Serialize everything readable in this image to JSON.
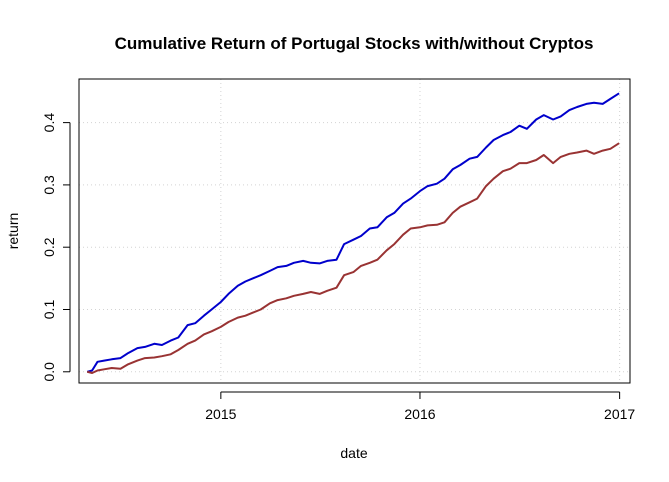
{
  "chart_data": {
    "type": "line",
    "title": "Cumulative Return of Portugal Stocks with/without Cryptos",
    "xlabel": "date",
    "ylabel": "return",
    "x_ticks": [
      "2015",
      "2016",
      "2017"
    ],
    "x_tick_values": [
      "2015-01-01",
      "2016-01-01",
      "2017-01-01"
    ],
    "y_ticks": [
      "0.0",
      "0.1",
      "0.2",
      "0.3",
      "0.4"
    ],
    "y_tick_values": [
      0.0,
      0.1,
      0.2,
      0.3,
      0.4
    ],
    "xlim": [
      "2014-04-16",
      "2017-01-20"
    ],
    "ylim": [
      -0.018,
      0.47
    ],
    "grid": true,
    "series": [
      {
        "color": "#0000cc",
        "x": [
          "2014-05-01",
          "2014-05-10",
          "2014-05-20",
          "2014-06-01",
          "2014-06-15",
          "2014-07-01",
          "2014-07-15",
          "2014-08-01",
          "2014-08-15",
          "2014-09-01",
          "2014-09-15",
          "2014-10-01",
          "2014-10-15",
          "2014-11-01",
          "2014-11-15",
          "2014-12-01",
          "2014-12-15",
          "2015-01-01",
          "2015-01-15",
          "2015-02-01",
          "2015-02-15",
          "2015-03-01",
          "2015-03-15",
          "2015-04-01",
          "2015-04-15",
          "2015-05-01",
          "2015-05-15",
          "2015-06-01",
          "2015-06-15",
          "2015-07-01",
          "2015-07-15",
          "2015-08-01",
          "2015-08-15",
          "2015-09-01",
          "2015-09-15",
          "2015-10-01",
          "2015-10-15",
          "2015-11-01",
          "2015-11-15",
          "2015-12-01",
          "2015-12-15",
          "2016-01-01",
          "2016-01-15",
          "2016-02-01",
          "2016-02-15",
          "2016-03-01",
          "2016-03-15",
          "2016-04-01",
          "2016-04-15",
          "2016-05-01",
          "2016-05-15",
          "2016-06-01",
          "2016-06-15",
          "2016-07-01",
          "2016-07-15",
          "2016-08-01",
          "2016-08-15",
          "2016-09-01",
          "2016-09-15",
          "2016-10-01",
          "2016-10-15",
          "2016-11-01",
          "2016-11-15",
          "2016-12-01",
          "2016-12-15",
          "2016-12-31"
        ],
        "values": [
          0.0,
          0.002,
          0.016,
          0.018,
          0.02,
          0.022,
          0.03,
          0.038,
          0.04,
          0.045,
          0.043,
          0.05,
          0.055,
          0.075,
          0.078,
          0.09,
          0.1,
          0.112,
          0.125,
          0.138,
          0.145,
          0.15,
          0.155,
          0.162,
          0.168,
          0.17,
          0.175,
          0.178,
          0.175,
          0.174,
          0.178,
          0.18,
          0.205,
          0.212,
          0.218,
          0.23,
          0.232,
          0.248,
          0.255,
          0.27,
          0.278,
          0.29,
          0.298,
          0.302,
          0.31,
          0.325,
          0.332,
          0.342,
          0.345,
          0.36,
          0.372,
          0.38,
          0.385,
          0.395,
          0.39,
          0.405,
          0.412,
          0.405,
          0.41,
          0.42,
          0.425,
          0.43,
          0.432,
          0.43,
          0.438,
          0.447
        ]
      },
      {
        "color": "#993333",
        "x": [
          "2014-05-01",
          "2014-05-10",
          "2014-05-20",
          "2014-06-01",
          "2014-06-15",
          "2014-07-01",
          "2014-07-15",
          "2014-08-01",
          "2014-08-15",
          "2014-09-01",
          "2014-09-15",
          "2014-10-01",
          "2014-10-15",
          "2014-11-01",
          "2014-11-15",
          "2014-12-01",
          "2014-12-15",
          "2015-01-01",
          "2015-01-15",
          "2015-02-01",
          "2015-02-15",
          "2015-03-01",
          "2015-03-15",
          "2015-04-01",
          "2015-04-15",
          "2015-05-01",
          "2015-05-15",
          "2015-06-01",
          "2015-06-15",
          "2015-07-01",
          "2015-07-15",
          "2015-08-01",
          "2015-08-15",
          "2015-09-01",
          "2015-09-15",
          "2015-10-01",
          "2015-10-15",
          "2015-11-01",
          "2015-11-15",
          "2015-12-01",
          "2015-12-15",
          "2016-01-01",
          "2016-01-15",
          "2016-02-01",
          "2016-02-15",
          "2016-03-01",
          "2016-03-15",
          "2016-04-01",
          "2016-04-15",
          "2016-05-01",
          "2016-05-15",
          "2016-06-01",
          "2016-06-15",
          "2016-07-01",
          "2016-07-15",
          "2016-08-01",
          "2016-08-15",
          "2016-09-01",
          "2016-09-15",
          "2016-10-01",
          "2016-10-15",
          "2016-11-01",
          "2016-11-15",
          "2016-12-01",
          "2016-12-15",
          "2016-12-31"
        ],
        "values": [
          0.0,
          -0.002,
          0.002,
          0.004,
          0.006,
          0.005,
          0.012,
          0.018,
          0.022,
          0.023,
          0.025,
          0.028,
          0.035,
          0.045,
          0.05,
          0.06,
          0.065,
          0.072,
          0.08,
          0.087,
          0.09,
          0.095,
          0.1,
          0.11,
          0.115,
          0.118,
          0.122,
          0.125,
          0.128,
          0.125,
          0.13,
          0.135,
          0.155,
          0.16,
          0.17,
          0.175,
          0.18,
          0.195,
          0.205,
          0.22,
          0.23,
          0.232,
          0.235,
          0.236,
          0.24,
          0.255,
          0.265,
          0.272,
          0.278,
          0.298,
          0.31,
          0.322,
          0.326,
          0.335,
          0.335,
          0.34,
          0.348,
          0.335,
          0.345,
          0.35,
          0.352,
          0.355,
          0.35,
          0.355,
          0.358,
          0.367
        ]
      }
    ]
  }
}
